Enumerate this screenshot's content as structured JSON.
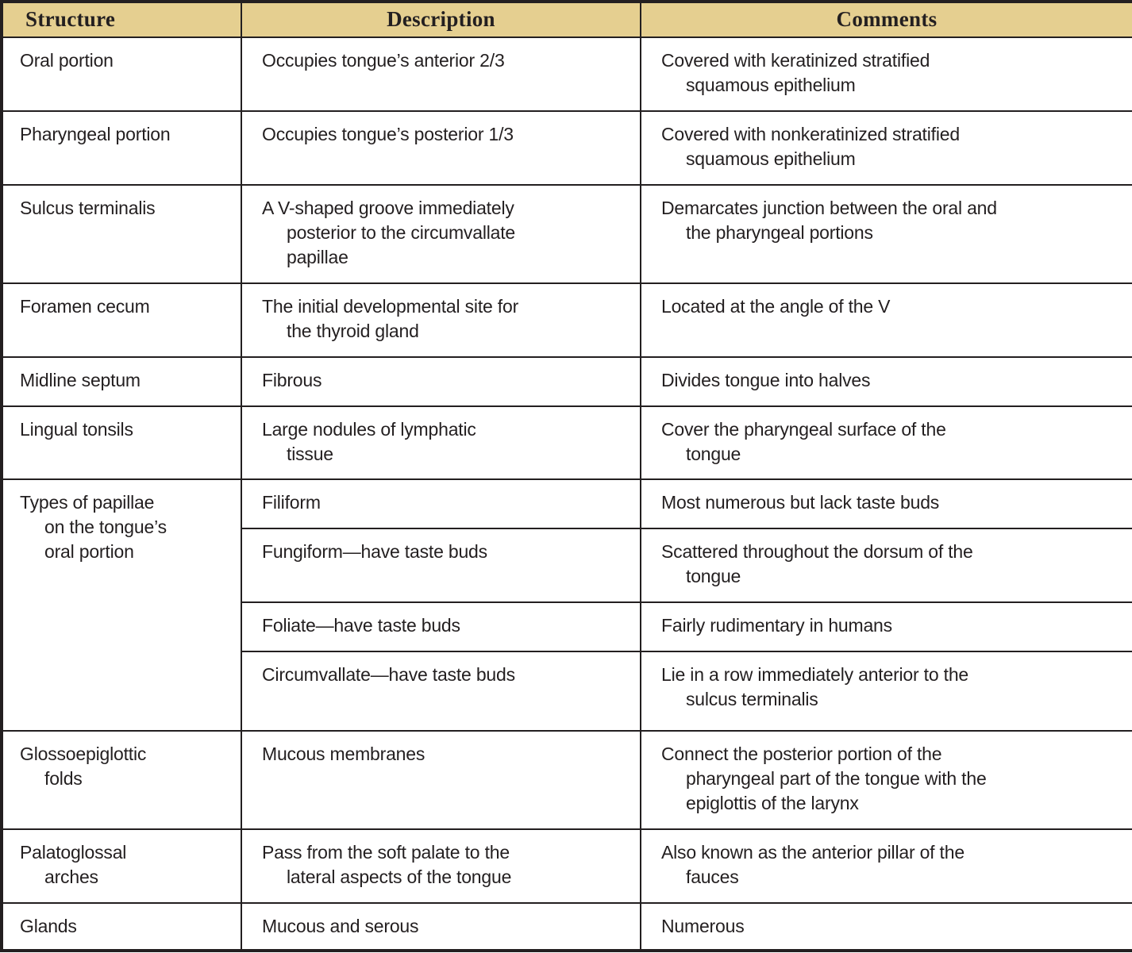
{
  "colors": {
    "header_bg": "#e5cf90",
    "border": "#231f20",
    "text": "#231f20"
  },
  "header": {
    "structure": "Structure",
    "description": "Description",
    "comments": "Comments"
  },
  "rows": {
    "oral": {
      "structure": [
        "Oral portion"
      ],
      "description": [
        "Occupies tongue’s anterior 2/3"
      ],
      "comments": [
        "Covered with keratinized stratified",
        "squamous epithelium"
      ]
    },
    "pharyngeal": {
      "structure": [
        "Pharyngeal portion"
      ],
      "description": [
        "Occupies tongue’s posterior 1/3"
      ],
      "comments": [
        "Covered with nonkeratinized stratified",
        "squamous epithelium"
      ]
    },
    "sulcus": {
      "structure": [
        "Sulcus terminalis"
      ],
      "description": [
        "A V-shaped groove immediately",
        "posterior to the circumvallate",
        "papillae"
      ],
      "comments": [
        "Demarcates junction between the oral and",
        "the pharyngeal portions"
      ]
    },
    "foramen": {
      "structure": [
        "Foramen cecum"
      ],
      "description": [
        "The initial developmental site for",
        "the thyroid gland"
      ],
      "comments": [
        "Located at the angle of the V"
      ]
    },
    "midline": {
      "structure": [
        "Midline septum"
      ],
      "description": [
        "Fibrous"
      ],
      "comments": [
        "Divides tongue into halves"
      ]
    },
    "lingual": {
      "structure": [
        "Lingual tonsils"
      ],
      "description": [
        "Large nodules of lymphatic",
        "tissue"
      ],
      "comments": [
        "Cover the pharyngeal surface of the",
        "tongue"
      ]
    },
    "papillae": {
      "structure": [
        "Types of papillae",
        "on the tongue’s",
        "oral portion"
      ],
      "filiform": {
        "description": [
          "Filiform"
        ],
        "comments": [
          "Most numerous but lack taste buds"
        ]
      },
      "fungiform": {
        "description": [
          "Fungiform—have taste buds"
        ],
        "comments": [
          "Scattered throughout the dorsum of the",
          "tongue"
        ]
      },
      "foliate": {
        "description": [
          "Foliate—have taste buds"
        ],
        "comments": [
          "Fairly rudimentary in humans"
        ]
      },
      "circumvallate": {
        "description": [
          "Circumvallate—have taste buds"
        ],
        "comments": [
          "Lie in a row immediately anterior to the",
          "sulcus terminalis"
        ]
      }
    },
    "glossoepiglottic": {
      "structure": [
        "Glossoepiglottic",
        "folds"
      ],
      "description": [
        "Mucous membranes"
      ],
      "comments": [
        "Connect the posterior portion of the",
        "pharyngeal part of the tongue with the",
        "epiglottis of the larynx"
      ]
    },
    "palatoglossal": {
      "structure": [
        "Palatoglossal",
        "arches"
      ],
      "description": [
        "Pass from the soft palate to the",
        "lateral aspects of the tongue"
      ],
      "comments": [
        "Also known as the anterior pillar of the",
        "fauces"
      ]
    },
    "glands": {
      "structure": [
        "Glands"
      ],
      "description": [
        "Mucous and serous"
      ],
      "comments": [
        "Numerous"
      ]
    }
  }
}
